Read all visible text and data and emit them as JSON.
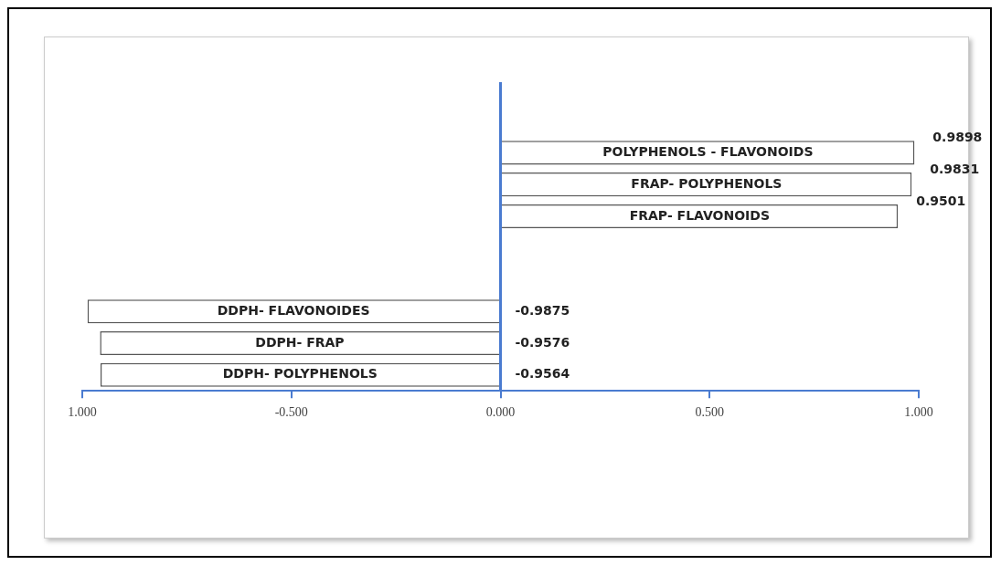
{
  "chart_data": {
    "type": "bar",
    "orientation": "horizontal",
    "categories": [
      "POLYPHENOLS - FLAVONOIDS",
      "FRAP- POLYPHENOLS",
      "FRAP- FLAVONOIDS",
      null,
      null,
      "DDPH- FLAVONOIDES",
      "DDPH- FRAP",
      "DDPH- POLYPHENOLS"
    ],
    "values": [
      0.9898,
      0.9831,
      0.9501,
      null,
      null,
      -0.9875,
      -0.9576,
      -0.9564
    ],
    "value_labels": [
      "0.9898",
      "0.9831",
      "0.9501",
      null,
      null,
      "-0.9875",
      "-0.9576",
      "-0.9564"
    ],
    "color": "#ffffff",
    "xlim": [
      -1,
      1
    ],
    "xticks": [
      {
        "value": -1,
        "label": "1.000"
      },
      {
        "value": -0.5,
        "label": "-0.500"
      },
      {
        "value": 0,
        "label": "0.000"
      },
      {
        "value": 0.5,
        "label": "0.500"
      },
      {
        "value": 1,
        "label": "1.000"
      }
    ],
    "ref_lines": [
      {
        "axis": "x",
        "value": 0,
        "color": "#4a7bd0"
      }
    ],
    "grid": false,
    "legend": false
  }
}
